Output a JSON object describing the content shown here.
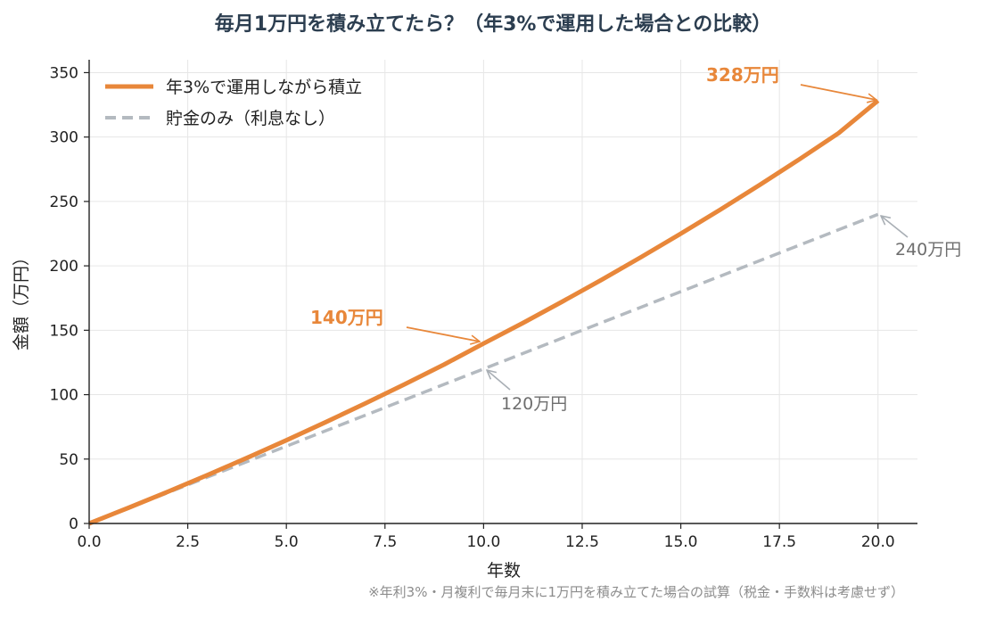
{
  "chart_data": {
    "type": "line",
    "title": "毎月1万円を積み立てたら？（年3%で運用した場合との比較）",
    "xlabel": "年数",
    "ylabel": "金額（万円）",
    "xlim": [
      0,
      21
    ],
    "ylim": [
      0,
      360
    ],
    "x_ticks": [
      0,
      2.5,
      5,
      7.5,
      10,
      12.5,
      15,
      17.5,
      20
    ],
    "x_tick_labels": [
      "0.0",
      "2.5",
      "5.0",
      "7.5",
      "10.0",
      "12.5",
      "15.0",
      "17.5",
      "20.0"
    ],
    "y_ticks": [
      0,
      50,
      100,
      150,
      200,
      250,
      300,
      350
    ],
    "y_tick_labels": [
      "0",
      "50",
      "100",
      "150",
      "200",
      "250",
      "300",
      "350"
    ],
    "grid": true,
    "legend_position": "top-left",
    "series": [
      {
        "name": "年3%で運用しながら積立",
        "style": "solid",
        "color": "#E8873A",
        "x": [
          0,
          1,
          2,
          3,
          4,
          5,
          6,
          7,
          8,
          9,
          10,
          11,
          12,
          13,
          14,
          15,
          16,
          17,
          18,
          19,
          20
        ],
        "values": [
          0,
          12.2,
          24.7,
          37.6,
          50.9,
          64.6,
          78.7,
          93.2,
          108.1,
          123.4,
          139.7,
          155.7,
          172.3,
          189.3,
          206.9,
          225.0,
          243.6,
          262.8,
          282.6,
          303.0,
          328.3
        ]
      },
      {
        "name": "貯金のみ（利息なし）",
        "style": "dashed",
        "color": "#B4BAC0",
        "x": [
          0,
          20
        ],
        "values": [
          0,
          240
        ]
      }
    ],
    "annotations": [
      {
        "text": "328万円",
        "x": 20,
        "y": 328,
        "series": 0
      },
      {
        "text": "140万円",
        "x": 10,
        "y": 140,
        "series": 0
      },
      {
        "text": "240万円",
        "x": 20,
        "y": 240,
        "series": 1
      },
      {
        "text": "120万円",
        "x": 10,
        "y": 120,
        "series": 1
      }
    ],
    "footnote": "※年利3%・月複利で毎月末に1万円を積み立てた場合の試算（税金・手数料は考慮せず）"
  },
  "colors": {
    "title": "#2C3E50",
    "accent": "#E8873A",
    "savings": "#B4BAC0",
    "annotation_gray": "#6E6E6E",
    "footnote": "#8C8C8C",
    "grid": "#E6E6E6"
  }
}
